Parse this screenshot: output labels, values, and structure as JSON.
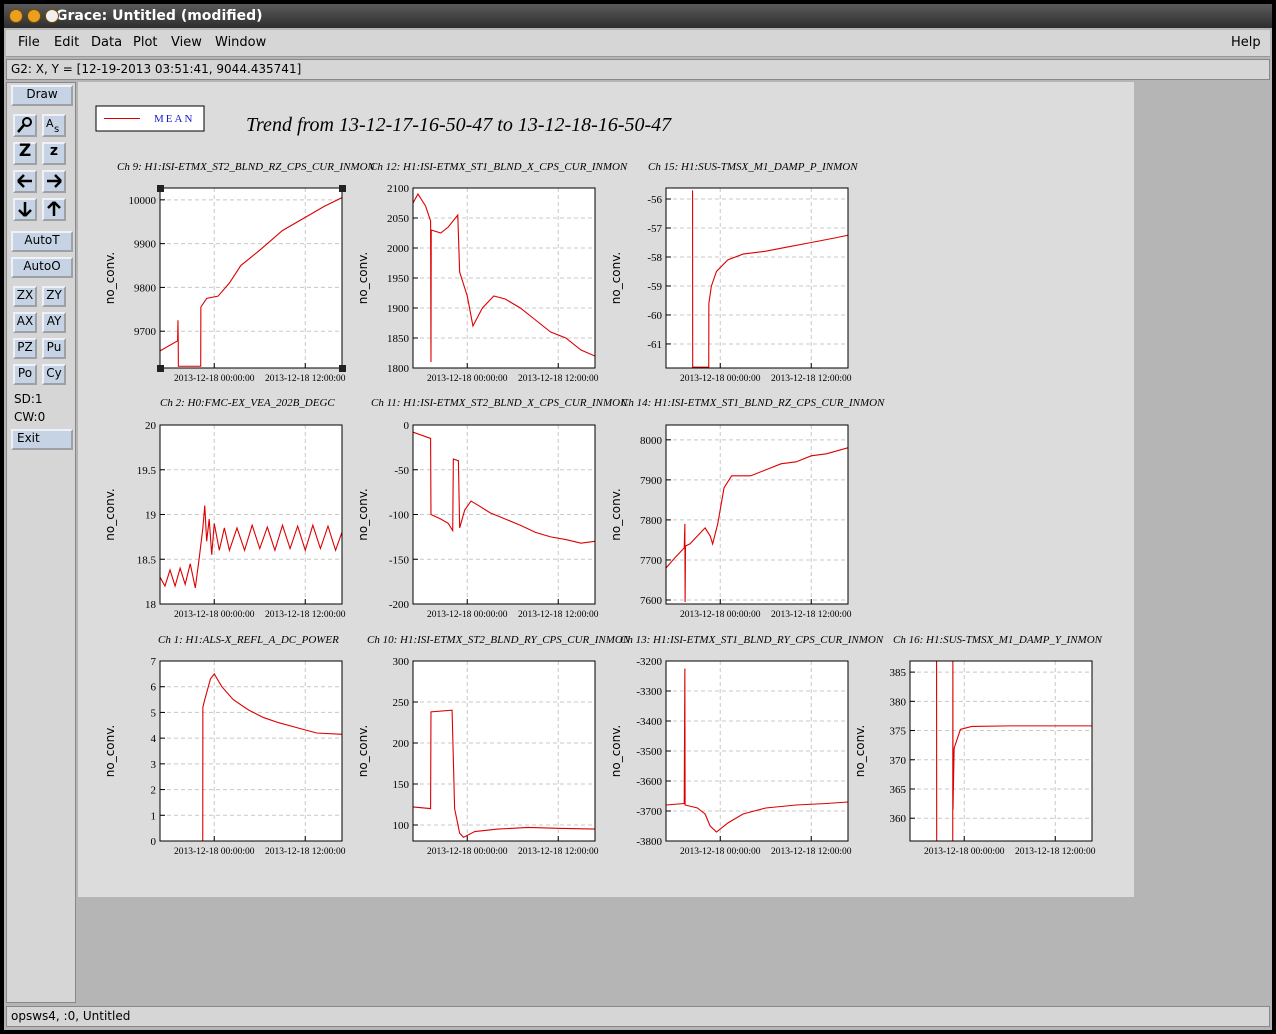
{
  "window_title": "Grace: Untitled (modified)",
  "menu": [
    "File",
    "Edit",
    "Data",
    "Plot",
    "View",
    "Window"
  ],
  "help": "Help",
  "locator": "G2: X, Y = [12-19-2013 03:51:41, 9044.435741]",
  "toolbar": {
    "draw": "Draw",
    "icon_labels": [
      "Z",
      "z"
    ],
    "auto": [
      "AutoT",
      "AutoO"
    ],
    "buttons": [
      "ZX",
      "ZY",
      "AX",
      "AY",
      "PZ",
      "Pu",
      "Po",
      "Cy"
    ],
    "sd": "SD:1",
    "cw": "CW:0",
    "exit": "Exit"
  },
  "status": "opsws4, :0, Untitled",
  "title": "Trend from 13-12-17-16-50-47 to 13-12-18-16-50-47",
  "chart_data": [
    {
      "type": "line",
      "title": "Ch 9: H1:ISI-ETMX_ST2_BLND_RZ_CPS_CUR_INMON",
      "y_label": "no_conv.",
      "x": [
        "2013-12-17 16:51:00",
        "2013-12-17 19:10:00",
        "2013-12-17 19:13:00",
        "2013-12-17 19:15:00",
        "2013-12-17 19:16:00",
        "2013-12-17 22:13:00",
        "2013-12-17 22:14:00",
        "2013-12-17 23:00:00",
        "2013-12-18 00:30:00",
        "2013-12-18 02:00:00",
        "2013-12-18 03:30:00",
        "2013-12-18 06:00:00",
        "2013-12-18 09:00:00",
        "2013-12-18 12:00:00",
        "2013-12-18 14:30:00",
        "2013-12-18 16:50:00"
      ],
      "series": [
        {
          "name": "MEAN",
          "color": "#dd0000",
          "values": [
            9655,
            9678,
            9725,
            9675,
            9620,
            9620,
            9755,
            9775,
            9780,
            9810,
            9850,
            9885,
            9930,
            9960,
            9985,
            10005
          ]
        }
      ],
      "xlim": [
        "2013-12-17 16:50:47",
        "2013-12-18 16:50:47"
      ],
      "xticks": [
        "2013-12-18 00:00:00",
        "2013-12-18 12:00:00"
      ],
      "ylim": [
        9616,
        10027
      ],
      "yticks": [
        9700,
        9800,
        9900,
        10000
      ],
      "grid": true
    },
    {
      "type": "line",
      "title": "Ch 12: H1:ISI-ETMX_ST1_BLND_X_CPS_CUR_INMON",
      "y_label": "no_conv.",
      "x": [
        "2013-12-17 16:51:00",
        "2013-12-17 17:30:00",
        "2013-12-17 18:30:00",
        "2013-12-17 19:10:00",
        "2013-12-17 19:13:00",
        "2013-12-17 19:15:00",
        "2013-12-17 20:30:00",
        "2013-12-17 21:30:00",
        "2013-12-17 22:45:00",
        "2013-12-17 23:00:00",
        "2013-12-18 00:00:00",
        "2013-12-18 00:45:00",
        "2013-12-18 02:00:00",
        "2013-12-18 03:30:00",
        "2013-12-18 05:00:00",
        "2013-12-18 07:00:00",
        "2013-12-18 09:00:00",
        "2013-12-18 11:00:00",
        "2013-12-18 13:00:00",
        "2013-12-18 15:00:00",
        "2013-12-18 16:50:00"
      ],
      "series": [
        {
          "color": "#dd0000",
          "values": [
            2075,
            2090,
            2070,
            2045,
            1810,
            2030,
            2025,
            2035,
            2055,
            1960,
            1920,
            1870,
            1900,
            1920,
            1915,
            1900,
            1880,
            1860,
            1850,
            1830,
            1820
          ]
        }
      ],
      "xlim": [
        "2013-12-17 16:50:47",
        "2013-12-18 16:50:47"
      ],
      "xticks": [
        "2013-12-18 00:00:00",
        "2013-12-18 12:00:00"
      ],
      "ylim": [
        1800,
        2100
      ],
      "yticks": [
        1800,
        1850,
        1900,
        1950,
        2000,
        2050,
        2100
      ],
      "grid": true
    },
    {
      "type": "line",
      "title": "Ch 15: H1:SUS-TMSX_M1_DAMP_P_INMON",
      "y_label": "no_conv.",
      "x": [
        "2013-12-17 20:21:00",
        "2013-12-17 20:22:00",
        "2013-12-17 22:29:00",
        "2013-12-17 22:30:00",
        "2013-12-17 22:50:00",
        "2013-12-17 23:30:00",
        "2013-12-18 01:00:00",
        "2013-12-18 03:00:00",
        "2013-12-18 06:00:00",
        "2013-12-18 09:00:00",
        "2013-12-18 12:00:00",
        "2013-12-18 15:00:00",
        "2013-12-18 16:50:00"
      ],
      "series": [
        {
          "color": "#dd0000",
          "values": [
            -55.7,
            -61.8,
            -61.8,
            -59.6,
            -59.0,
            -58.5,
            -58.1,
            -57.9,
            -57.8,
            -57.65,
            -57.5,
            -57.35,
            -57.25
          ]
        }
      ],
      "xlim": [
        "2013-12-17 16:50:47",
        "2013-12-18 16:50:47"
      ],
      "xticks": [
        "2013-12-18 00:00:00",
        "2013-12-18 12:00:00"
      ],
      "ylim": [
        -61.83,
        -55.62
      ],
      "yticks": [
        -61,
        -60,
        -59,
        -58,
        -57,
        -56
      ],
      "grid": true
    },
    {
      "type": "line",
      "title": "Ch 2: H0:FMC-EX_VEA_202B_DEGC",
      "y_label": "no_conv.",
      "x": [
        "2013-12-17 16:51:00",
        "2013-12-17 17:30:00",
        "2013-12-17 18:10:00",
        "2013-12-17 18:50:00",
        "2013-12-17 19:30:00",
        "2013-12-17 20:10:00",
        "2013-12-17 20:50:00",
        "2013-12-17 21:30:00",
        "2013-12-17 22:00:00",
        "2013-12-17 22:30:00",
        "2013-12-17 22:45:00",
        "2013-12-17 23:00:00",
        "2013-12-17 23:20:00",
        "2013-12-17 23:40:00",
        "2013-12-18 00:00:00",
        "2013-12-18 00:40:00",
        "2013-12-18 01:20:00",
        "2013-12-18 02:00:00",
        "2013-12-18 03:00:00",
        "2013-12-18 04:00:00",
        "2013-12-18 05:00:00",
        "2013-12-18 06:00:00",
        "2013-12-18 07:00:00",
        "2013-12-18 08:00:00",
        "2013-12-18 09:00:00",
        "2013-12-18 10:00:00",
        "2013-12-18 11:00:00",
        "2013-12-18 12:00:00",
        "2013-12-18 13:00:00",
        "2013-12-18 14:00:00",
        "2013-12-18 15:00:00",
        "2013-12-18 16:00:00",
        "2013-12-18 16:50:00"
      ],
      "series": [
        {
          "color": "#dd0000",
          "values": [
            18.3,
            18.2,
            18.38,
            18.2,
            18.4,
            18.22,
            18.45,
            18.18,
            18.5,
            18.85,
            19.1,
            18.7,
            18.95,
            18.55,
            18.9,
            18.6,
            18.85,
            18.6,
            18.85,
            18.6,
            18.88,
            18.62,
            18.86,
            18.6,
            18.88,
            18.62,
            18.87,
            18.6,
            18.88,
            18.62,
            18.87,
            18.6,
            18.8
          ]
        }
      ],
      "xlim": [
        "2013-12-17 16:50:47",
        "2013-12-18 16:50:47"
      ],
      "xticks": [
        "2013-12-18 00:00:00",
        "2013-12-18 12:00:00"
      ],
      "ylim": [
        18,
        20
      ],
      "yticks": [
        18,
        18.5,
        19,
        19.5,
        20
      ],
      "grid": true
    },
    {
      "type": "line",
      "title": "Ch 11: H1:ISI-ETMX_ST2_BLND_X_CPS_CUR_INMON",
      "y_label": "no_conv.",
      "x": [
        "2013-12-17 16:51:00",
        "2013-12-17 19:10:00",
        "2013-12-17 19:13:00",
        "2013-12-17 20:30:00",
        "2013-12-17 21:30:00",
        "2013-12-17 22:05:00",
        "2013-12-17 22:10:00",
        "2013-12-17 22:50:00",
        "2013-12-17 23:00:00",
        "2013-12-17 23:40:00",
        "2013-12-18 00:30:00",
        "2013-12-18 01:30:00",
        "2013-12-18 03:00:00",
        "2013-12-18 05:00:00",
        "2013-12-18 07:00:00",
        "2013-12-18 09:00:00",
        "2013-12-18 11:00:00",
        "2013-12-18 13:00:00",
        "2013-12-18 15:00:00",
        "2013-12-18 16:50:00"
      ],
      "series": [
        {
          "color": "#dd0000",
          "values": [
            -8,
            -15,
            -100,
            -105,
            -110,
            -118,
            -38,
            -40,
            -115,
            -95,
            -85,
            -90,
            -98,
            -105,
            -112,
            -120,
            -125,
            -128,
            -132,
            -130
          ]
        }
      ],
      "xlim": [
        "2013-12-17 16:50:47",
        "2013-12-18 16:50:47"
      ],
      "xticks": [
        "2013-12-18 00:00:00",
        "2013-12-18 12:00:00"
      ],
      "ylim": [
        -200,
        0
      ],
      "yticks": [
        -200,
        -150,
        -100,
        -50,
        0
      ],
      "grid": true
    },
    {
      "type": "line",
      "title": "Ch 14: H1:ISI-ETMX_ST1_BLND_RZ_CPS_CUR_INMON",
      "y_label": "no_conv.",
      "x": [
        "2013-12-17 16:51:00",
        "2013-12-17 18:00:00",
        "2013-12-17 19:15:00",
        "2013-12-17 19:20:00",
        "2013-12-17 19:22:00",
        "2013-12-17 19:25:00",
        "2013-12-17 20:00:00",
        "2013-12-17 21:00:00",
        "2013-12-17 22:00:00",
        "2013-12-17 22:40:00",
        "2013-12-17 23:00:00",
        "2013-12-17 23:40:00",
        "2013-12-18 00:30:00",
        "2013-12-18 01:30:00",
        "2013-12-18 04:00:00",
        "2013-12-18 06:00:00",
        "2013-12-18 08:00:00",
        "2013-12-18 10:00:00",
        "2013-12-18 12:00:00",
        "2013-12-18 14:00:00",
        "2013-12-18 16:50:00"
      ],
      "series": [
        {
          "color": "#dd0000",
          "values": [
            7680,
            7705,
            7730,
            7790,
            7595,
            7735,
            7740,
            7760,
            7780,
            7760,
            7740,
            7790,
            7880,
            7910,
            7910,
            7925,
            7940,
            7945,
            7960,
            7965,
            7980
          ]
        }
      ],
      "xlim": [
        "2013-12-17 16:50:47",
        "2013-12-18 16:50:47"
      ],
      "xticks": [
        "2013-12-18 00:00:00",
        "2013-12-18 12:00:00"
      ],
      "ylim": [
        7590,
        8037
      ],
      "yticks": [
        7600,
        7700,
        7800,
        7900,
        8000
      ],
      "grid": true
    },
    {
      "type": "line",
      "title": "Ch 1: H1:ALS-X_REFL_A_DC_POWER",
      "y_label": "no_conv.",
      "x": [
        "2013-12-17 22:29:00",
        "2013-12-17 22:30:00",
        "2013-12-17 22:45:00",
        "2013-12-17 23:30:00",
        "2013-12-18 00:00:00",
        "2013-12-18 01:00:00",
        "2013-12-18 02:30:00",
        "2013-12-18 04:30:00",
        "2013-12-18 06:30:00",
        "2013-12-18 08:30:00",
        "2013-12-18 11:00:00",
        "2013-12-18 13:30:00",
        "2013-12-18 16:50:00"
      ],
      "series": [
        {
          "color": "#dd0000",
          "values": [
            0,
            5.2,
            5.5,
            6.3,
            6.5,
            6.0,
            5.5,
            5.1,
            4.8,
            4.6,
            4.4,
            4.2,
            4.15
          ]
        }
      ],
      "xlim": [
        "2013-12-17 16:50:47",
        "2013-12-18 16:50:47"
      ],
      "xticks": [
        "2013-12-18 00:00:00",
        "2013-12-18 12:00:00"
      ],
      "ylim": [
        0,
        7
      ],
      "yticks": [
        0,
        1,
        2,
        3,
        4,
        5,
        6,
        7
      ],
      "grid": true
    },
    {
      "type": "line",
      "title": "Ch 10: H1:ISI-ETMX_ST2_BLND_RY_CPS_CUR_INMON",
      "y_label": "no_conv.",
      "x": [
        "2013-12-17 16:51:00",
        "2013-12-17 19:10:00",
        "2013-12-17 19:13:00",
        "2013-12-17 22:00:00",
        "2013-12-17 22:20:00",
        "2013-12-17 23:00:00",
        "2013-12-17 23:30:00",
        "2013-12-18 01:00:00",
        "2013-12-18 04:00:00",
        "2013-12-18 08:00:00",
        "2013-12-18 12:00:00",
        "2013-12-18 16:50:00"
      ],
      "series": [
        {
          "color": "#dd0000",
          "values": [
            122,
            120,
            238,
            240,
            120,
            90,
            85,
            92,
            95,
            97,
            96,
            95
          ]
        }
      ],
      "xlim": [
        "2013-12-17 16:50:47",
        "2013-12-18 16:50:47"
      ],
      "xticks": [
        "2013-12-18 00:00:00",
        "2013-12-18 12:00:00"
      ],
      "ylim": [
        80.5,
        300
      ],
      "yticks": [
        100,
        150,
        200,
        250,
        300
      ],
      "grid": true
    },
    {
      "type": "line",
      "title": "Ch 13: H1:ISI-ETMX_ST1_BLND_RY_CPS_CUR_INMON",
      "y_label": "no_conv.",
      "x": [
        "2013-12-17 16:51:00",
        "2013-12-17 19:15:00",
        "2013-12-17 19:20:00",
        "2013-12-17 19:22:00",
        "2013-12-17 21:00:00",
        "2013-12-17 22:00:00",
        "2013-12-17 22:40:00",
        "2013-12-17 23:30:00",
        "2013-12-18 01:00:00",
        "2013-12-18 03:00:00",
        "2013-12-18 06:00:00",
        "2013-12-18 10:00:00",
        "2013-12-18 14:00:00",
        "2013-12-18 16:50:00"
      ],
      "series": [
        {
          "color": "#dd0000",
          "values": [
            -3680,
            -3675,
            -3225,
            -3680,
            -3690,
            -3710,
            -3750,
            -3770,
            -3740,
            -3710,
            -3690,
            -3680,
            -3675,
            -3670
          ]
        }
      ],
      "xlim": [
        "2013-12-17 16:50:47",
        "2013-12-18 16:50:47"
      ],
      "xticks": [
        "2013-12-18 00:00:00",
        "2013-12-18 12:00:00"
      ],
      "ylim": [
        -3800,
        -3200
      ],
      "yticks": [
        -3800,
        -3700,
        -3600,
        -3500,
        -3400,
        -3300,
        -3200
      ],
      "grid": true
    },
    {
      "type": "line",
      "title": "Ch 16: H1:SUS-TMSX_M1_DAMP_Y_INMON",
      "y_label": "no_conv.",
      "x": [
        "2013-12-17 20:21:00",
        "2013-12-17 20:22:00",
        "2013-12-17 22:29:00",
        "2013-12-17 22:30:00",
        "2013-12-17 22:31:00",
        "2013-12-17 22:40:00",
        "2013-12-17 23:30:00",
        "2013-12-18 01:00:00",
        "2013-12-18 06:00:00",
        "2013-12-18 16:50:00"
      ],
      "series": [
        {
          "color": "#dd0000",
          "values": [
            386.9,
            356.1,
            356.1,
            386.9,
            361.5,
            372,
            375.2,
            375.7,
            375.8,
            375.8
          ]
        }
      ],
      "xlim": [
        "2013-12-17 16:50:47",
        "2013-12-18 16:50:47"
      ],
      "xticks": [
        "2013-12-18 00:00:00",
        "2013-12-18 12:00:00"
      ],
      "ylim": [
        356.1,
        386.9
      ],
      "yticks": [
        360,
        365,
        370,
        375,
        380,
        385
      ],
      "grid": true
    }
  ]
}
